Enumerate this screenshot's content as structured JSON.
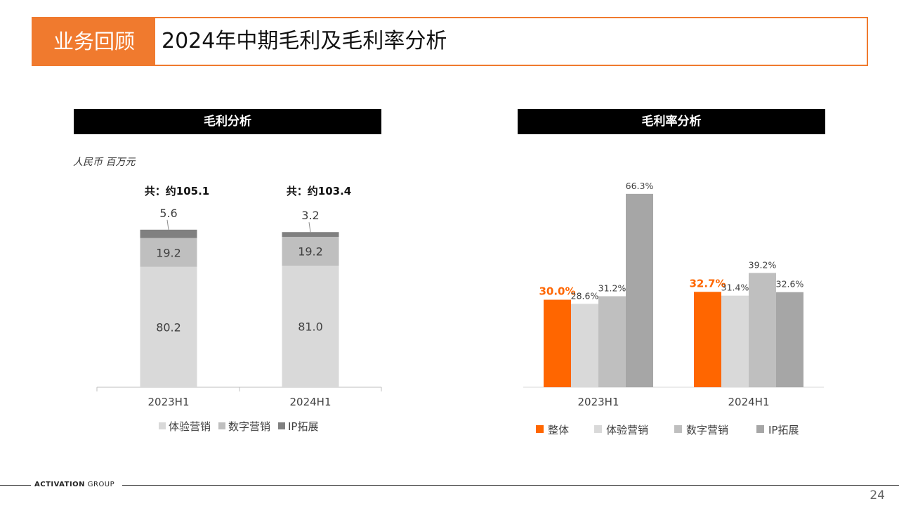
{
  "header": {
    "tag": "业务回顾",
    "title": "2024年中期毛利及毛利率分析"
  },
  "left_panel": {
    "title": "毛利分析",
    "unit": "人民币 百万元"
  },
  "right_panel": {
    "title": "毛利率分析"
  },
  "footer": {
    "logo_bold": "ACTIVATION",
    "logo_rest": " GROUP",
    "page_number": "24"
  },
  "colors": {
    "accent": "#f07a2e",
    "overall": "#ff6600",
    "experience": "#d9d9d9",
    "digital": "#bfbfbf",
    "ip": "#a6a6a6",
    "ip_left": "#808080"
  },
  "chart_data": [
    {
      "type": "bar",
      "stacked": true,
      "title": "毛利分析",
      "ylabel": "人民币 百万元",
      "categories": [
        "2023H1",
        "2024H1"
      ],
      "totals": [
        "共：约105.1",
        "共：约103.4"
      ],
      "series": [
        {
          "name": "体验营销",
          "values": [
            80.2,
            81.0
          ],
          "labels": [
            "80.2",
            "81.0"
          ]
        },
        {
          "name": "数字营销",
          "values": [
            19.2,
            19.2
          ],
          "labels": [
            "19.2",
            "19.2"
          ]
        },
        {
          "name": "IP拓展",
          "values": [
            5.6,
            3.2
          ],
          "labels": [
            "5.6",
            "3.2"
          ]
        }
      ],
      "legend": "bottom"
    },
    {
      "type": "bar",
      "title": "毛利率分析",
      "categories": [
        "2023H1",
        "2024H1"
      ],
      "series": [
        {
          "name": "整体",
          "values": [
            30.0,
            32.7
          ],
          "labels": [
            "30.0%",
            "32.7%"
          ]
        },
        {
          "name": "体验营销",
          "values": [
            28.6,
            31.4
          ],
          "labels": [
            "28.6%",
            "31.4%"
          ]
        },
        {
          "name": "数字营销",
          "values": [
            31.2,
            39.2
          ],
          "labels": [
            "31.2%",
            "39.2%"
          ]
        },
        {
          "name": "IP拓展",
          "values": [
            66.3,
            32.6
          ],
          "labels": [
            "66.3%",
            "32.6%"
          ]
        }
      ],
      "legend": "bottom"
    }
  ]
}
